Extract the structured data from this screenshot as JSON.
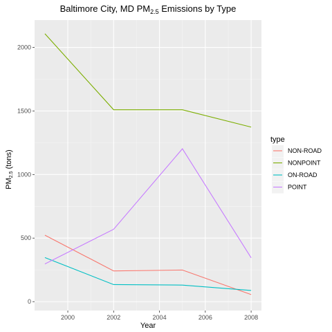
{
  "chart_data": {
    "type": "line",
    "title_main": "Baltimore City, MD PM",
    "title_sub": "2.5",
    "title_rest": " Emissions by Type",
    "xlabel": "Year",
    "ylabel_main": "PM",
    "ylabel_sub": "2.5",
    "ylabel_rest": " (tons)",
    "xlim": [
      1998.55,
      2008.45
    ],
    "ylim": [
      -70,
      2215
    ],
    "x_ticks": [
      2000,
      2002,
      2004,
      2006,
      2008
    ],
    "y_ticks": [
      0,
      500,
      1000,
      1500,
      2000
    ],
    "grid": true,
    "legend_title": "type",
    "legend_position": "right",
    "x": [
      1999,
      2002,
      2005,
      2008
    ],
    "series": [
      {
        "name": "NON-ROAD",
        "color": "#F8766D",
        "values": [
          522.9,
          241.8,
          248.9,
          55.8
        ]
      },
      {
        "name": "NONPOINT",
        "color": "#7CAE00",
        "values": [
          2107.6,
          1509.5,
          1509.5,
          1373.2
        ]
      },
      {
        "name": "ON-ROAD",
        "color": "#00BFC4",
        "values": [
          346.8,
          134.3,
          130.4,
          88.3
        ]
      },
      {
        "name": "POINT",
        "color": "#C77CFF",
        "values": [
          296.8,
          569.3,
          1202.5,
          344.98
        ]
      }
    ]
  }
}
